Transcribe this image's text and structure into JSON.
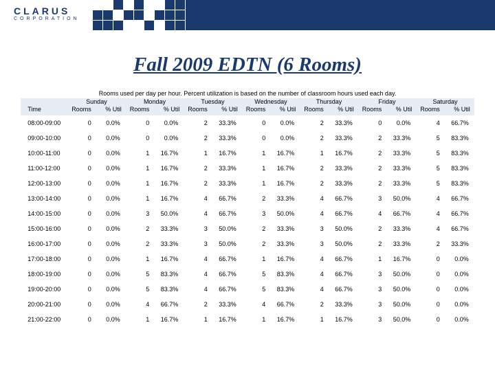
{
  "logo": {
    "name": "CLARUS",
    "sub": "CORPORATION"
  },
  "title": "Fall 2009 EDTN (6 Rooms)",
  "caption": "Rooms used per day per hour. Percent utilization is based on the number of classroom hours used each day.",
  "table": {
    "time_label": "Time",
    "sub_cols": [
      "Rooms",
      "% Util"
    ],
    "days": [
      "Sunday",
      "Monday",
      "Tuesday",
      "Wednesday",
      "Thursday",
      "Friday",
      "Saturday"
    ],
    "rows": [
      {
        "t": "08:00-09:00",
        "v": [
          [
            0,
            "0.0%"
          ],
          [
            0,
            "0.0%"
          ],
          [
            2,
            "33.3%"
          ],
          [
            0,
            "0.0%"
          ],
          [
            2,
            "33.3%"
          ],
          [
            0,
            "0.0%"
          ],
          [
            4,
            "66.7%"
          ]
        ]
      },
      {
        "t": "09:00-10:00",
        "v": [
          [
            0,
            "0.0%"
          ],
          [
            0,
            "0.0%"
          ],
          [
            2,
            "33.3%"
          ],
          [
            0,
            "0.0%"
          ],
          [
            2,
            "33.3%"
          ],
          [
            2,
            "33.3%"
          ],
          [
            5,
            "83.3%"
          ]
        ]
      },
      {
        "t": "10:00-11:00",
        "v": [
          [
            0,
            "0.0%"
          ],
          [
            1,
            "16.7%"
          ],
          [
            1,
            "16.7%"
          ],
          [
            1,
            "16.7%"
          ],
          [
            1,
            "16.7%"
          ],
          [
            2,
            "33.3%"
          ],
          [
            5,
            "83.3%"
          ]
        ]
      },
      {
        "t": "11:00-12:00",
        "v": [
          [
            0,
            "0.0%"
          ],
          [
            1,
            "16.7%"
          ],
          [
            2,
            "33.3%"
          ],
          [
            1,
            "16.7%"
          ],
          [
            2,
            "33.3%"
          ],
          [
            2,
            "33.3%"
          ],
          [
            5,
            "83.3%"
          ]
        ]
      },
      {
        "t": "12:00-13:00",
        "v": [
          [
            0,
            "0.0%"
          ],
          [
            1,
            "16.7%"
          ],
          [
            2,
            "33.3%"
          ],
          [
            1,
            "16.7%"
          ],
          [
            2,
            "33.3%"
          ],
          [
            2,
            "33.3%"
          ],
          [
            5,
            "83.3%"
          ]
        ]
      },
      {
        "t": "13:00-14:00",
        "v": [
          [
            0,
            "0.0%"
          ],
          [
            1,
            "16.7%"
          ],
          [
            4,
            "66.7%"
          ],
          [
            2,
            "33.3%"
          ],
          [
            4,
            "66.7%"
          ],
          [
            3,
            "50.0%"
          ],
          [
            4,
            "66.7%"
          ]
        ]
      },
      {
        "t": "14:00-15:00",
        "v": [
          [
            0,
            "0.0%"
          ],
          [
            3,
            "50.0%"
          ],
          [
            4,
            "66.7%"
          ],
          [
            3,
            "50.0%"
          ],
          [
            4,
            "66.7%"
          ],
          [
            4,
            "66.7%"
          ],
          [
            4,
            "66.7%"
          ]
        ]
      },
      {
        "t": "15:00-16:00",
        "v": [
          [
            0,
            "0.0%"
          ],
          [
            2,
            "33.3%"
          ],
          [
            3,
            "50.0%"
          ],
          [
            2,
            "33.3%"
          ],
          [
            3,
            "50.0%"
          ],
          [
            2,
            "33.3%"
          ],
          [
            4,
            "66.7%"
          ]
        ]
      },
      {
        "t": "16:00-17:00",
        "v": [
          [
            0,
            "0.0%"
          ],
          [
            2,
            "33.3%"
          ],
          [
            3,
            "50.0%"
          ],
          [
            2,
            "33.3%"
          ],
          [
            3,
            "50.0%"
          ],
          [
            2,
            "33.3%"
          ],
          [
            2,
            "33.3%"
          ]
        ]
      },
      {
        "t": "17:00-18:00",
        "v": [
          [
            0,
            "0.0%"
          ],
          [
            1,
            "16.7%"
          ],
          [
            4,
            "66.7%"
          ],
          [
            1,
            "16.7%"
          ],
          [
            4,
            "66.7%"
          ],
          [
            1,
            "16.7%"
          ],
          [
            0,
            "0.0%"
          ]
        ]
      },
      {
        "t": "18:00-19:00",
        "v": [
          [
            0,
            "0.0%"
          ],
          [
            5,
            "83.3%"
          ],
          [
            4,
            "66.7%"
          ],
          [
            5,
            "83.3%"
          ],
          [
            4,
            "66.7%"
          ],
          [
            3,
            "50.0%"
          ],
          [
            0,
            "0.0%"
          ]
        ]
      },
      {
        "t": "19:00-20:00",
        "v": [
          [
            0,
            "0.0%"
          ],
          [
            5,
            "83.3%"
          ],
          [
            4,
            "66.7%"
          ],
          [
            5,
            "83.3%"
          ],
          [
            4,
            "66.7%"
          ],
          [
            3,
            "50.0%"
          ],
          [
            0,
            "0.0%"
          ]
        ]
      },
      {
        "t": "20:00-21:00",
        "v": [
          [
            0,
            "0.0%"
          ],
          [
            4,
            "66.7%"
          ],
          [
            2,
            "33.3%"
          ],
          [
            4,
            "66.7%"
          ],
          [
            2,
            "33.3%"
          ],
          [
            3,
            "50.0%"
          ],
          [
            0,
            "0.0%"
          ]
        ]
      },
      {
        "t": "21:00-22:00",
        "v": [
          [
            0,
            "0.0%"
          ],
          [
            1,
            "16.7%"
          ],
          [
            1,
            "16.7%"
          ],
          [
            1,
            "16.7%"
          ],
          [
            1,
            "16.7%"
          ],
          [
            3,
            "50.0%"
          ],
          [
            0,
            "0.0%"
          ]
        ]
      }
    ]
  },
  "squares_pattern": [
    [
      0,
      0,
      1,
      0,
      1,
      0,
      0,
      1,
      1
    ],
    [
      1,
      1,
      0,
      1,
      1,
      0,
      1,
      1,
      1
    ],
    [
      1,
      1,
      1,
      0,
      0,
      1,
      0,
      1,
      1
    ]
  ]
}
